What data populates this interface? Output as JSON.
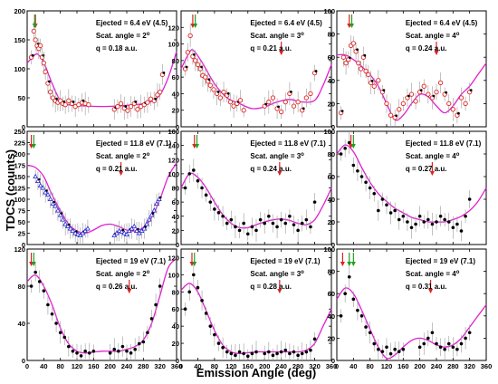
{
  "figure": {
    "ylabel": "TDCS (counts)",
    "xlabel": "Emission Angle (deg)",
    "colors": {
      "fit": "#e020d0",
      "data_black": "#000000",
      "data_red": "#e02020",
      "data_blue": "#2020d0",
      "arrow_red": "#e02020",
      "arrow_green": "#20a020",
      "errorbar": "#999999"
    }
  },
  "chart_data": [
    {
      "type": "scatter",
      "panel": "row1-col1",
      "annotation": [
        "Ejected = 6.4 eV (4.5)",
        "Scat. angle = 2",
        "q = 0.18 a.u."
      ],
      "degree_mark": "o",
      "xlim": [
        0,
        360
      ],
      "ylim": [
        0,
        200
      ],
      "yticks": [
        "0",
        "50",
        "100",
        "150",
        "200"
      ],
      "xticks": [],
      "x": [
        10,
        16,
        20,
        24,
        28,
        32,
        36,
        40,
        44,
        50,
        56,
        62,
        68,
        74,
        80,
        86,
        92,
        100,
        108,
        116,
        124,
        132,
        140,
        148,
        210,
        218,
        226,
        234,
        242,
        250,
        258,
        266,
        274,
        282,
        290,
        298,
        306,
        314,
        320,
        326
      ],
      "y": [
        120,
        165,
        150,
        140,
        135,
        140,
        120,
        110,
        95,
        75,
        60,
        50,
        45,
        42,
        45,
        40,
        38,
        45,
        40,
        35,
        38,
        42,
        40,
        38,
        30,
        35,
        40,
        32,
        28,
        35,
        40,
        30,
        35,
        38,
        42,
        48,
        45,
        55,
        60,
        90
      ],
      "series_style": "red-open-circles-with-black",
      "fit": {
        "x": [
          0,
          20,
          30,
          40,
          60,
          80,
          100,
          140,
          180,
          220,
          260,
          280,
          300,
          320,
          340,
          360
        ],
        "y": [
          110,
          125,
          122,
          112,
          75,
          45,
          38,
          36,
          35,
          36,
          38,
          40,
          44,
          55,
          85,
          130
        ]
      },
      "arrows_red": [
        20
      ],
      "arrows_green": [
        18
      ]
    },
    {
      "type": "scatter",
      "panel": "row1-col2",
      "annotation": [
        "Ejected = 6.4 eV (4.5)",
        "Scat. angle = 3",
        "q = 0.21 a.u."
      ],
      "degree_mark": "o",
      "xlim": [
        0,
        360
      ],
      "ylim": [
        0,
        140
      ],
      "yticks": [
        "0",
        "20",
        "40",
        "60",
        "80",
        "100",
        "120"
      ],
      "xticks": [],
      "x": [
        10,
        16,
        22,
        28,
        34,
        40,
        46,
        52,
        58,
        64,
        70,
        78,
        86,
        94,
        102,
        110,
        118,
        126,
        134,
        142,
        150,
        200,
        210,
        220,
        230,
        240,
        250,
        260,
        270,
        280,
        290,
        300,
        310,
        320
      ],
      "y": [
        70,
        90,
        110,
        85,
        80,
        75,
        70,
        62,
        60,
        55,
        50,
        45,
        40,
        35,
        42,
        38,
        30,
        25,
        28,
        32,
        20,
        25,
        30,
        35,
        22,
        18,
        30,
        40,
        25,
        30,
        20,
        35,
        40,
        65
      ],
      "series_style": "red-open-circles-with-black",
      "fit": {
        "x": [
          0,
          20,
          30,
          50,
          80,
          110,
          140,
          170,
          200,
          230,
          260,
          290,
          320,
          340,
          360
        ],
        "y": [
          70,
          90,
          92,
          78,
          52,
          35,
          28,
          22,
          24,
          30,
          33,
          30,
          32,
          50,
          75
        ]
      },
      "arrows_red": [
        28,
        240
      ],
      "arrows_green": [
        34
      ]
    },
    {
      "type": "scatter",
      "panel": "row1-col3",
      "annotation": [
        "Ejected = 6.4 eV (4.5)",
        "Scat. angle = 4",
        "q = 0.24 a.u."
      ],
      "degree_mark": "o",
      "xlim": [
        0,
        360
      ],
      "ylim": [
        0,
        100
      ],
      "yticks": [
        "0",
        "20",
        "40",
        "60",
        "80",
        "100"
      ],
      "xticks": [],
      "x": [
        10,
        16,
        22,
        28,
        34,
        40,
        46,
        52,
        58,
        64,
        70,
        76,
        82,
        90,
        100,
        110,
        120,
        130,
        140,
        150,
        160,
        170,
        180,
        190,
        200,
        210,
        220,
        230,
        240,
        250,
        260,
        270,
        280,
        290,
        300,
        310,
        320
      ],
      "y": [
        12,
        60,
        55,
        58,
        70,
        72,
        65,
        55,
        50,
        60,
        48,
        45,
        38,
        35,
        40,
        30,
        20,
        10,
        8,
        15,
        20,
        25,
        28,
        22,
        30,
        35,
        28,
        25,
        30,
        38,
        28,
        20,
        15,
        10,
        25,
        20,
        30
      ],
      "series_style": "red-open-circles-with-black",
      "fit": {
        "x": [
          0,
          20,
          40,
          60,
          80,
          100,
          120,
          140,
          160,
          180,
          200,
          220,
          240,
          260,
          280,
          300,
          320,
          340,
          360
        ],
        "y": [
          62,
          62,
          58,
          52,
          45,
          35,
          20,
          6,
          10,
          20,
          28,
          26,
          18,
          12,
          18,
          28,
          35,
          45,
          55
        ]
      },
      "arrows_red": [
        30,
        240
      ],
      "arrows_green": [
        36
      ]
    },
    {
      "type": "scatter",
      "panel": "row2-col1",
      "annotation": [
        "Ejected = 11.8 eV (7.1)",
        "Scat. angle = 2",
        "q = 0.21 a.u."
      ],
      "degree_mark": "o",
      "xlim": [
        0,
        360
      ],
      "ylim": [
        0,
        250
      ],
      "yticks": [
        "0",
        "25",
        "50",
        "75",
        "100",
        "125",
        "150",
        "175",
        "200",
        "225",
        "250"
      ],
      "xticks": [],
      "x": [
        20,
        26,
        32,
        38,
        44,
        50,
        56,
        62,
        68,
        74,
        80,
        86,
        92,
        98,
        104,
        110,
        116,
        122,
        128,
        134,
        140,
        146,
        210,
        216,
        222,
        228,
        234,
        240,
        246,
        252,
        258,
        264,
        270,
        276,
        282,
        288,
        294,
        300,
        306,
        312,
        318
      ],
      "y": [
        150,
        140,
        130,
        125,
        115,
        110,
        100,
        90,
        85,
        75,
        65,
        55,
        45,
        40,
        35,
        30,
        25,
        22,
        20,
        25,
        30,
        35,
        20,
        25,
        30,
        28,
        25,
        22,
        30,
        35,
        40,
        30,
        25,
        30,
        35,
        45,
        55,
        65,
        75,
        90,
        100
      ],
      "series_style": "blue-open-triangles-with-black",
      "fit": {
        "x": [
          0,
          20,
          40,
          60,
          80,
          100,
          120,
          140,
          160,
          180,
          200,
          220,
          240,
          260,
          280,
          300,
          320,
          340,
          360
        ],
        "y": [
          175,
          170,
          150,
          110,
          75,
          45,
          30,
          25,
          32,
          42,
          45,
          40,
          32,
          30,
          38,
          60,
          100,
          150,
          180
        ]
      },
      "arrows_red": [
        10,
        226
      ],
      "arrows_green": [
        16
      ]
    },
    {
      "type": "scatter",
      "panel": "row2-col2",
      "annotation": [
        "Ejected = 11.8 eV (7.1)",
        "Scat. angle = 3",
        "q = 0.24 a.u."
      ],
      "degree_mark": "o",
      "xlim": [
        0,
        360
      ],
      "ylim": [
        0,
        160
      ],
      "yticks": [
        "0",
        "20",
        "40",
        "60",
        "80",
        "100",
        "120",
        "140",
        "160"
      ],
      "xticks": [],
      "x": [
        10,
        20,
        30,
        40,
        50,
        60,
        70,
        80,
        90,
        100,
        110,
        120,
        130,
        140,
        150,
        160,
        170,
        180,
        190,
        200,
        210,
        220,
        230,
        240,
        250,
        260,
        270,
        280,
        290,
        300,
        310,
        320
      ],
      "y": [
        80,
        100,
        105,
        90,
        80,
        70,
        60,
        50,
        45,
        40,
        30,
        35,
        25,
        20,
        30,
        15,
        25,
        20,
        35,
        30,
        40,
        30,
        25,
        35,
        30,
        40,
        28,
        20,
        30,
        35,
        25,
        60
      ],
      "series_style": "black-filled-circles",
      "fit": {
        "x": [
          0,
          20,
          40,
          60,
          80,
          100,
          120,
          140,
          160,
          180,
          200,
          220,
          240,
          260,
          280,
          300,
          320,
          340,
          360
        ],
        "y": [
          80,
          100,
          95,
          80,
          60,
          42,
          30,
          24,
          24,
          28,
          32,
          35,
          36,
          34,
          30,
          28,
          35,
          55,
          80
        ]
      },
      "arrows_red": [
        32,
        236
      ],
      "arrows_green": [
        38
      ]
    },
    {
      "type": "scatter",
      "panel": "row2-col3",
      "annotation": [
        "Ejected = 11.8 eV (7.1)",
        "Scat. angle = 4",
        "q = 0.27 a.u."
      ],
      "degree_mark": "o",
      "xlim": [
        0,
        360
      ],
      "ylim": [
        0,
        100
      ],
      "yticks": [
        "0",
        "20",
        "40",
        "60",
        "80",
        "100"
      ],
      "xticks": [],
      "x": [
        10,
        20,
        30,
        40,
        50,
        60,
        70,
        80,
        90,
        100,
        110,
        120,
        130,
        140,
        150,
        160,
        170,
        180,
        190,
        200,
        210,
        220,
        230,
        240,
        250,
        260,
        270,
        280,
        290,
        300,
        310,
        320
      ],
      "y": [
        80,
        85,
        90,
        70,
        65,
        60,
        55,
        50,
        45,
        30,
        40,
        35,
        28,
        30,
        22,
        25,
        20,
        15,
        18,
        25,
        20,
        22,
        18,
        20,
        25,
        22,
        20,
        15,
        18,
        12,
        25,
        40
      ],
      "series_style": "black-filled-circles",
      "fit": {
        "x": [
          0,
          20,
          40,
          60,
          80,
          100,
          120,
          140,
          160,
          180,
          200,
          220,
          240,
          260,
          280,
          300,
          320,
          340,
          360
        ],
        "y": [
          80,
          88,
          82,
          68,
          55,
          45,
          38,
          32,
          28,
          24,
          22,
          20,
          20,
          20,
          22,
          25,
          30,
          38,
          50
        ]
      },
      "arrows_red": [
        34,
        230
      ],
      "arrows_green": [
        40
      ]
    },
    {
      "type": "scatter",
      "panel": "row3-col1",
      "annotation": [
        "Ejected = 19 eV (7.1)",
        "Scat. angle = 2",
        "q = 0.26 a.u."
      ],
      "degree_mark": "o",
      "xlim": [
        0,
        360
      ],
      "ylim": [
        0,
        120
      ],
      "yticks": [
        "0",
        "40",
        "80",
        "120"
      ],
      "xticks": [
        "0",
        "40",
        "80",
        "120",
        "160",
        "200",
        "240",
        "280",
        "320",
        "360"
      ],
      "x": [
        10,
        20,
        30,
        40,
        50,
        60,
        70,
        80,
        90,
        100,
        110,
        120,
        130,
        140,
        150,
        160,
        200,
        210,
        220,
        230,
        240,
        250,
        260,
        270,
        280,
        290,
        300,
        310,
        320
      ],
      "y": [
        80,
        95,
        85,
        75,
        60,
        50,
        40,
        30,
        25,
        15,
        10,
        8,
        5,
        10,
        8,
        10,
        8,
        12,
        10,
        15,
        10,
        8,
        12,
        18,
        20,
        30,
        45,
        60,
        80
      ],
      "series_style": "black-filled-circles",
      "fit": {
        "x": [
          0,
          20,
          40,
          60,
          80,
          100,
          120,
          140,
          160,
          180,
          200,
          220,
          240,
          260,
          280,
          300,
          320,
          340,
          360
        ],
        "y": [
          85,
          92,
          80,
          60,
          35,
          18,
          10,
          8,
          9,
          10,
          10,
          10,
          12,
          15,
          22,
          40,
          70,
          100,
          110
        ]
      },
      "arrows_red": [
        10,
        246
      ],
      "arrows_green": [
        16
      ]
    },
    {
      "type": "scatter",
      "panel": "row3-col2",
      "annotation": [
        "Ejected = 19 eV (7.1)",
        "Scat. angle = 3",
        "q = 0.28 a.u."
      ],
      "degree_mark": "o",
      "xlim": [
        0,
        360
      ],
      "ylim": [
        0,
        130
      ],
      "yticks": [
        "0",
        "20",
        "40",
        "60",
        "80",
        "100",
        "120"
      ],
      "xticks": [
        "0",
        "40",
        "80",
        "120",
        "160",
        "200",
        "240",
        "280",
        "320",
        "360"
      ],
      "x": [
        10,
        20,
        30,
        40,
        50,
        60,
        70,
        80,
        90,
        100,
        110,
        120,
        130,
        140,
        150,
        160,
        170,
        180,
        200,
        210,
        220,
        230,
        240,
        250,
        260,
        270,
        280,
        290,
        300,
        310,
        320
      ],
      "y": [
        60,
        80,
        100,
        85,
        70,
        55,
        40,
        30,
        20,
        15,
        10,
        8,
        6,
        10,
        8,
        5,
        8,
        10,
        8,
        10,
        6,
        8,
        10,
        12,
        8,
        10,
        6,
        8,
        10,
        12,
        25
      ],
      "series_style": "black-filled-circles",
      "fit": {
        "x": [
          0,
          20,
          40,
          60,
          80,
          100,
          120,
          140,
          160,
          180,
          200,
          220,
          240,
          260,
          280,
          300,
          320,
          340,
          360
        ],
        "y": [
          82,
          90,
          80,
          58,
          35,
          18,
          10,
          8,
          9,
          10,
          10,
          10,
          10,
          10,
          10,
          12,
          20,
          40,
          60
        ]
      },
      "arrows_red": [
        26,
        236
      ],
      "arrows_green": [
        32
      ]
    },
    {
      "type": "scatter",
      "panel": "row3-col3",
      "annotation": [
        "Ejected = 19 eV (7.1)",
        "Scat. angle = 4",
        "q = 0.31 a.u."
      ],
      "degree_mark": "o",
      "xlim": [
        0,
        360
      ],
      "ylim": [
        0,
        100
      ],
      "yticks": [
        "0",
        "20",
        "40",
        "60",
        "80",
        "100"
      ],
      "xticks": [
        "0",
        "40",
        "80",
        "120",
        "160",
        "200",
        "240",
        "280",
        "320",
        "360"
      ],
      "x": [
        10,
        20,
        30,
        40,
        50,
        60,
        70,
        80,
        90,
        100,
        110,
        120,
        130,
        140,
        150,
        160,
        200,
        210,
        220,
        230,
        240,
        250,
        260,
        270,
        280,
        290,
        300,
        310,
        320
      ],
      "y": [
        40,
        60,
        75,
        55,
        45,
        40,
        30,
        25,
        15,
        10,
        8,
        12,
        6,
        10,
        8,
        10,
        12,
        15,
        20,
        25,
        15,
        12,
        10,
        15,
        12,
        10,
        15,
        20,
        25
      ],
      "series_style": "black-filled-circles",
      "fit": {
        "x": [
          0,
          20,
          40,
          60,
          80,
          100,
          120,
          140,
          160,
          180,
          200,
          220,
          240,
          260,
          280,
          300,
          320,
          340,
          360
        ],
        "y": [
          55,
          65,
          60,
          45,
          28,
          12,
          2,
          5,
          12,
          18,
          20,
          18,
          14,
          12,
          14,
          20,
          30,
          40,
          50
        ]
      },
      "arrows_red": [
        14,
        226
      ],
      "arrows_green": [
        30,
        40
      ]
    }
  ]
}
